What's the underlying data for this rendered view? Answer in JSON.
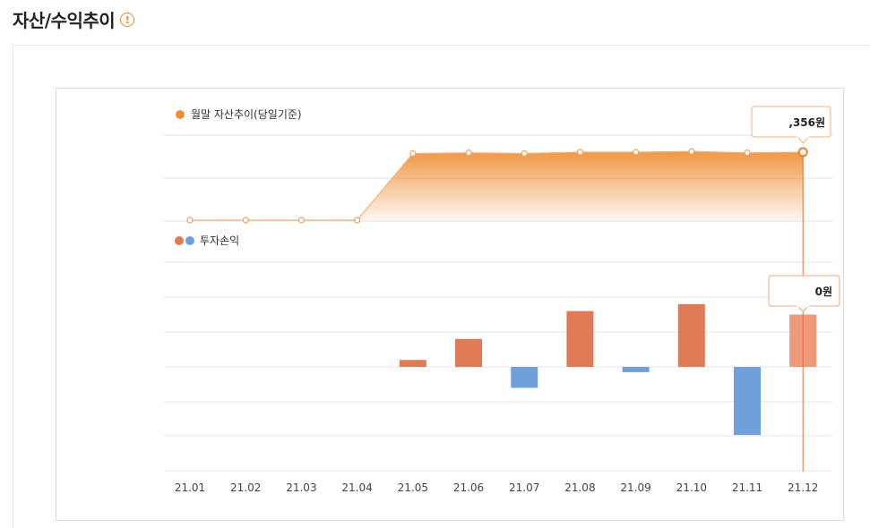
{
  "header": {
    "title": "자산/수익추이",
    "info_icon": "info-icon",
    "info_glyph": "!"
  },
  "chart_data": [
    {
      "type": "area",
      "legend": "월말 자산추이(당일기준)",
      "categories": [
        "21.01",
        "21.02",
        "21.03",
        "21.04",
        "21.05",
        "21.06",
        "21.07",
        "21.08",
        "21.09",
        "21.10",
        "21.11",
        "21.12"
      ],
      "series": [
        {
          "name": "월말 자산추이(당일기준)",
          "values": [
            0,
            0,
            0,
            0,
            0.98,
            0.99,
            0.98,
            1.0,
            1.0,
            1.01,
            0.99,
            1.0
          ]
        }
      ],
      "tooltip": ",356원",
      "tooltip_index": 11,
      "color": "#f0913a",
      "grid": true
    },
    {
      "type": "bar",
      "legend": "투자손익",
      "categories": [
        "21.01",
        "21.02",
        "21.03",
        "21.04",
        "21.05",
        "21.06",
        "21.07",
        "21.08",
        "21.09",
        "21.10",
        "21.11",
        "21.12"
      ],
      "series": [
        {
          "name": "투자손익",
          "values": [
            0,
            0,
            0,
            0,
            0.2,
            0.8,
            -0.6,
            1.6,
            -0.15,
            1.8,
            -1.95,
            1.5
          ]
        }
      ],
      "tooltip": "0원",
      "tooltip_index": 11,
      "positive_color": "#e07b58",
      "negative_color": "#6f9fdc",
      "highlight_color": "#f0987a",
      "grid": true
    }
  ]
}
